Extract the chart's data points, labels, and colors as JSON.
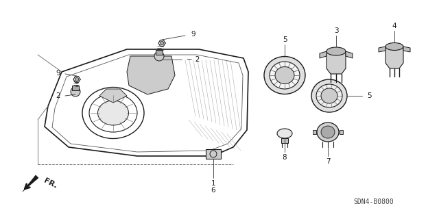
{
  "bg_color": "#ffffff",
  "line_color": "#1a1a1a",
  "part_number": "SDN4-B0800",
  "figsize": [
    6.4,
    3.2
  ],
  "dpi": 100
}
